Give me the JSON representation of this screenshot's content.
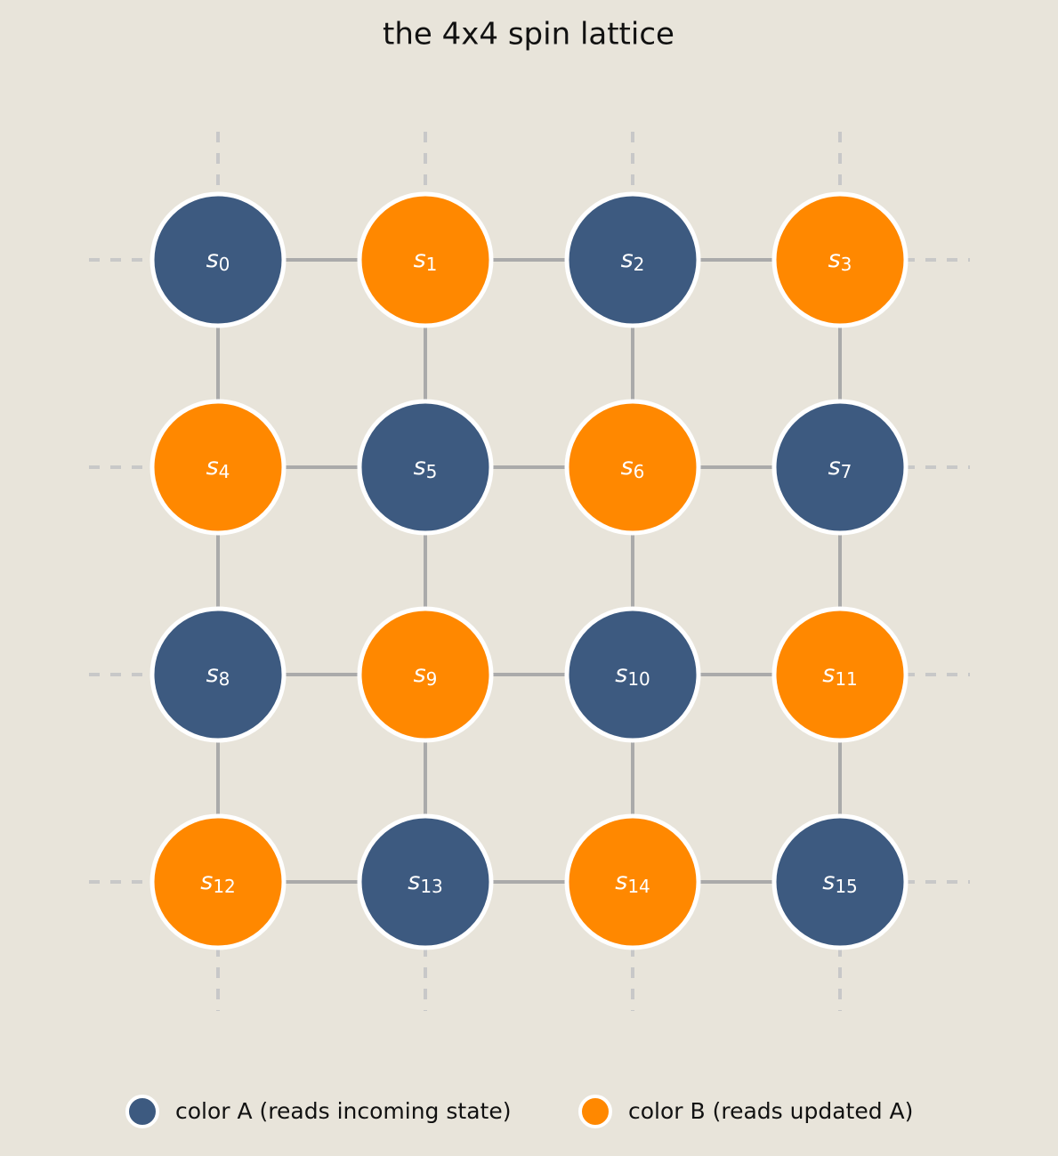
{
  "title": "the 4x4 spin lattice",
  "legend": [
    {
      "label": "color A (reads incoming state)",
      "color": "#3d5a80"
    },
    {
      "label": "color B (reads updated A)",
      "color": "#ff8800"
    }
  ],
  "nodes": [
    {
      "base": "s",
      "sub": "0",
      "group": 0
    },
    {
      "base": "s",
      "sub": "1",
      "group": 1
    },
    {
      "base": "s",
      "sub": "2",
      "group": 0
    },
    {
      "base": "s",
      "sub": "3",
      "group": 1
    },
    {
      "base": "s",
      "sub": "4",
      "group": 1
    },
    {
      "base": "s",
      "sub": "5",
      "group": 0
    },
    {
      "base": "s",
      "sub": "6",
      "group": 1
    },
    {
      "base": "s",
      "sub": "7",
      "group": 0
    },
    {
      "base": "s",
      "sub": "8",
      "group": 0
    },
    {
      "base": "s",
      "sub": "9",
      "group": 1
    },
    {
      "base": "s",
      "sub": "10",
      "group": 0
    },
    {
      "base": "s",
      "sub": "11",
      "group": 1
    },
    {
      "base": "s",
      "sub": "12",
      "group": 1
    },
    {
      "base": "s",
      "sub": "13",
      "group": 0
    },
    {
      "base": "s",
      "sub": "14",
      "group": 1
    },
    {
      "base": "s",
      "sub": "15",
      "group": 0
    }
  ]
}
